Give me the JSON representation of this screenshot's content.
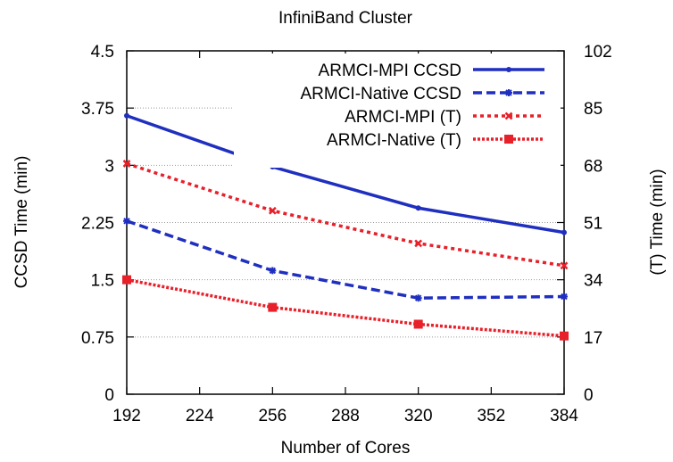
{
  "chart_data": {
    "type": "line",
    "title": "InfiniBand Cluster",
    "xlabel": "Number of Cores",
    "ylabel": "CCSD Time (min)",
    "y2label": "(T) Time (min)",
    "xlim": [
      192,
      384
    ],
    "ylim": [
      0,
      4.5
    ],
    "y2lim": [
      0,
      102
    ],
    "x_ticks": [
      192,
      224,
      256,
      288,
      320,
      352,
      384
    ],
    "y_ticks": [
      "0",
      "0.75",
      "1.5",
      "2.25",
      "3",
      "3.75",
      "4.5"
    ],
    "y2_ticks": [
      "0",
      "17",
      "34",
      "51",
      "68",
      "85",
      "102"
    ],
    "grid": "horizontal dotted",
    "legend_position": "top-right",
    "series": [
      {
        "name": "ARMCI-MPI CCSD",
        "axis": "left",
        "color": "#1f2fbf",
        "style": "solid",
        "marker": "dot",
        "x": [
          192,
          256,
          320,
          384
        ],
        "y": [
          3.65,
          2.98,
          2.44,
          2.12
        ]
      },
      {
        "name": "ARMCI-Native CCSD",
        "axis": "left",
        "color": "#1f2fbf",
        "style": "dashed",
        "marker": "star",
        "x": [
          192,
          256,
          320,
          384
        ],
        "y": [
          2.27,
          1.62,
          1.26,
          1.28
        ]
      },
      {
        "name": "ARMCI-MPI (T)",
        "axis": "right",
        "color": "#e8202a",
        "style": "dotted-short",
        "marker": "x",
        "x": [
          192,
          256,
          320,
          384
        ],
        "y": [
          68.5,
          54.5,
          44.8,
          38.2
        ]
      },
      {
        "name": "ARMCI-Native (T)",
        "axis": "right",
        "color": "#e8202a",
        "style": "dotted",
        "marker": "square",
        "x": [
          192,
          256,
          320,
          384
        ],
        "y": [
          34.0,
          25.8,
          20.8,
          17.3
        ]
      }
    ]
  }
}
